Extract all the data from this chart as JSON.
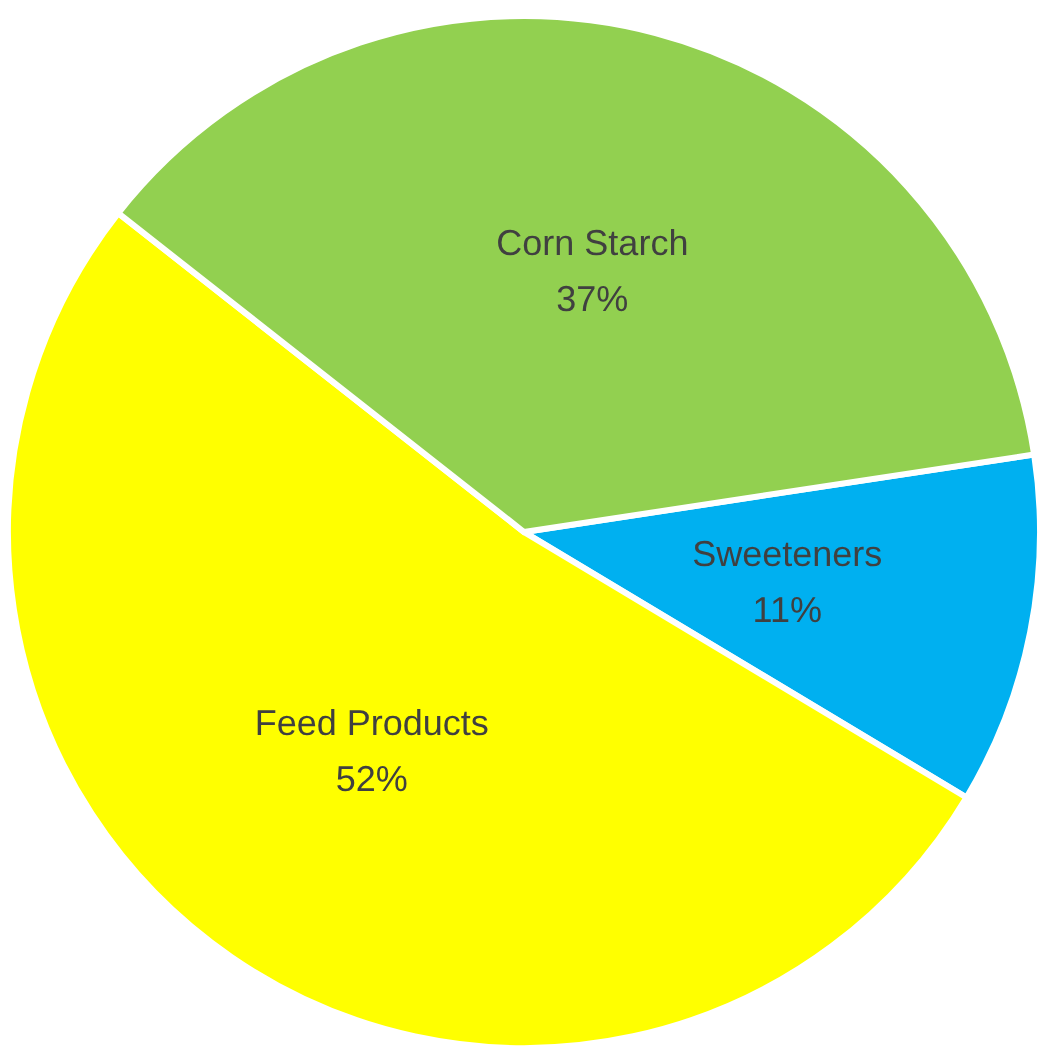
{
  "chart_data": {
    "type": "pie",
    "categories": [
      "Sweeteners",
      "Feed Products",
      "Corn Starch"
    ],
    "values": [
      11,
      52,
      37
    ],
    "colors": [
      "#00b0f0",
      "#ffff00",
      "#92d050"
    ],
    "value_labels": [
      "11%",
      "52%",
      "37%"
    ]
  }
}
